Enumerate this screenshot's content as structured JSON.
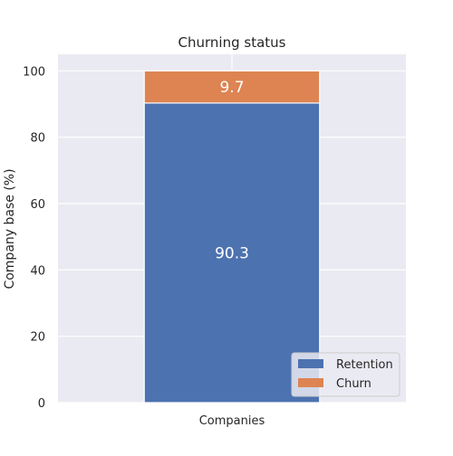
{
  "chart_data": {
    "type": "bar",
    "stacked": true,
    "title": "Churning status",
    "xlabel": "",
    "ylabel": "Company base (%)",
    "categories": [
      "Companies"
    ],
    "ylim": [
      0,
      105
    ],
    "yticks": [
      0,
      20,
      40,
      60,
      80,
      100
    ],
    "grid": true,
    "legend_position": "lower-right",
    "series": [
      {
        "name": "Retention",
        "values": [
          90.3
        ],
        "color": "#4c72b0"
      },
      {
        "name": "Churn",
        "values": [
          9.7
        ],
        "color": "#dd8452"
      }
    ],
    "data_labels": [
      "90.3",
      "9.7"
    ],
    "background_color": "#eaeaf2",
    "grid_color": "#ffffff"
  }
}
